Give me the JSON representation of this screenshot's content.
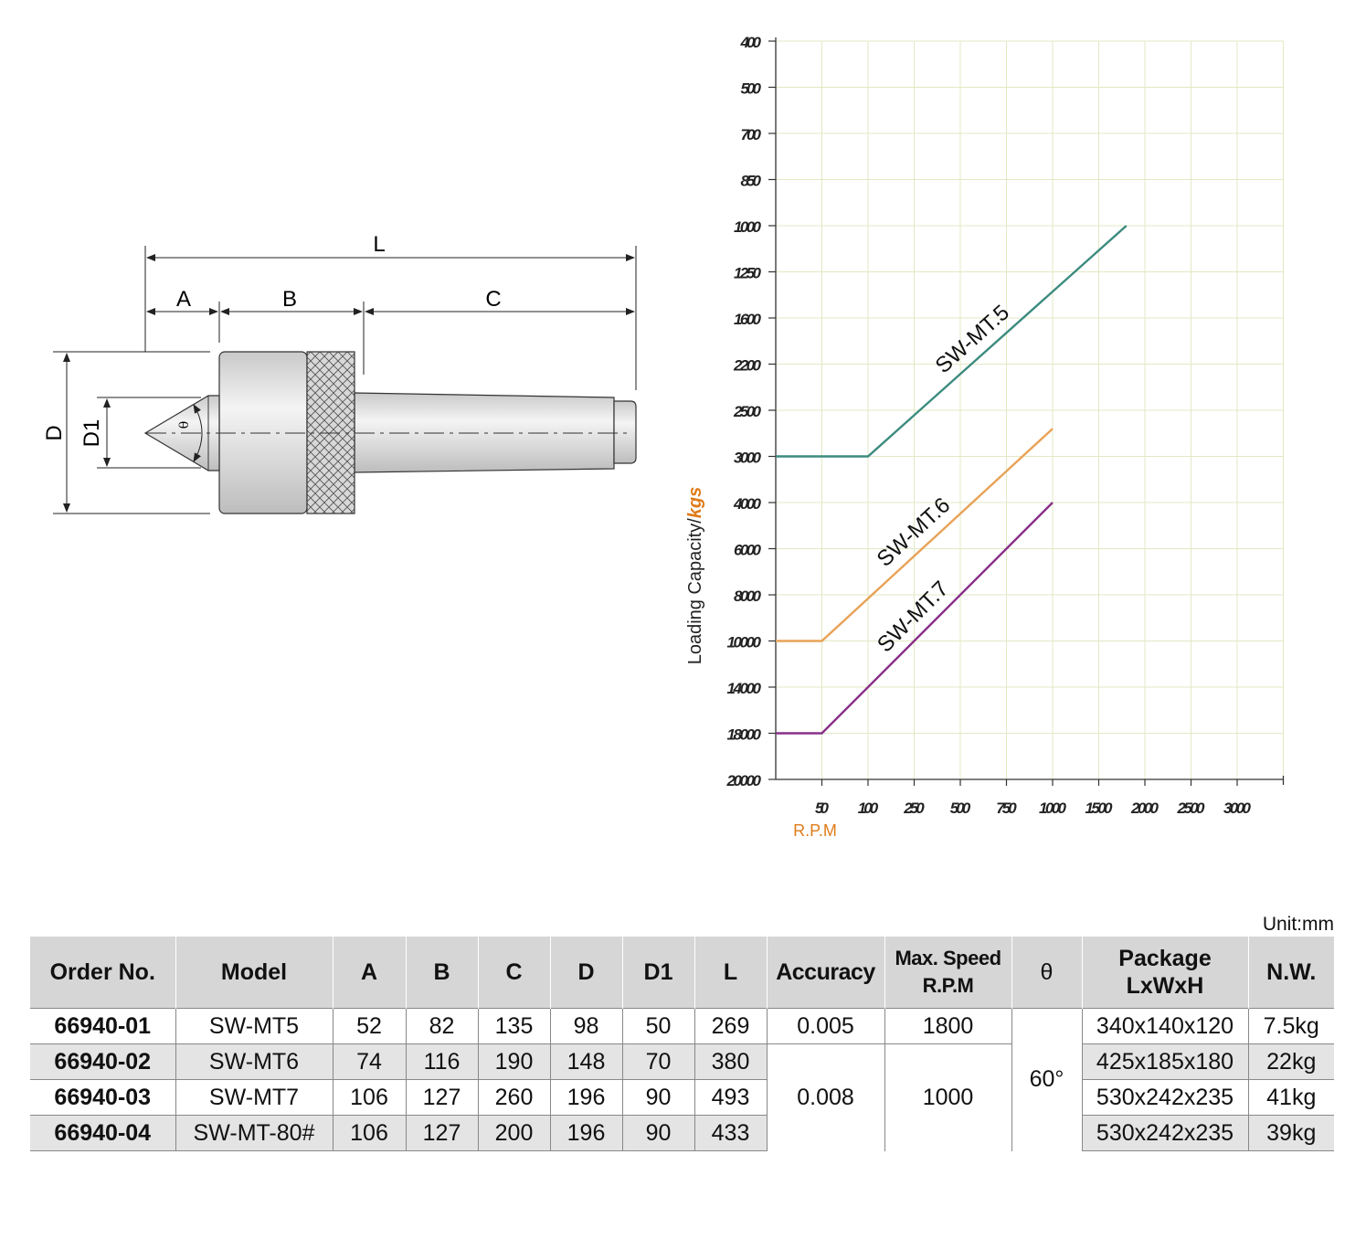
{
  "drawing": {
    "dimension_labels": {
      "L": "L",
      "A": "A",
      "B": "B",
      "C": "C",
      "D": "D",
      "D1": "D1",
      "theta": "θ"
    }
  },
  "chart_data": {
    "type": "line",
    "x_tick_labels": [
      "50",
      "100",
      "250",
      "500",
      "750",
      "1000",
      "1500",
      "2000",
      "2500",
      "3000"
    ],
    "y_tick_labels": [
      "400",
      "500",
      "700",
      "850",
      "1000",
      "1250",
      "1600",
      "2200",
      "2500",
      "3000",
      "4000",
      "6000",
      "8000",
      "10000",
      "14000",
      "18000",
      "20000"
    ],
    "xlabel": "R.P.M",
    "ylabel": "Loading Capacity/",
    "ylabel_unit": "kgs",
    "axis_color": "#333333",
    "grid_color": "#e3e8c4",
    "label_color": "#e07b1a",
    "series": [
      {
        "name": "SW-MT.5",
        "color": "#3b8b7e",
        "x": [
          "0",
          "100",
          "1800"
        ],
        "y": [
          "3000",
          "3000",
          "1000"
        ]
      },
      {
        "name": "SW-MT.6",
        "color": "#e8a257",
        "x": [
          "0",
          "50",
          "1000"
        ],
        "y": [
          "10000",
          "10000",
          "2700"
        ]
      },
      {
        "name": "SW-MT.7",
        "color": "#86308a",
        "x": [
          "0",
          "50",
          "1000"
        ],
        "y": [
          "18000",
          "18000",
          "4000"
        ]
      }
    ]
  },
  "table": {
    "unit": "Unit:mm",
    "headers": {
      "order_no": "Order No.",
      "model": "Model",
      "a": "A",
      "b": "B",
      "c": "C",
      "d": "D",
      "d1": "D1",
      "l": "L",
      "accuracy": "Accuracy",
      "max_speed_1": "Max. Speed",
      "max_speed_2": "R.P.M",
      "theta": "θ",
      "package_1": "Package",
      "package_2": "LxWxH",
      "nw": "N.W."
    },
    "rows": [
      {
        "order_no": "66940-01",
        "model": "SW-MT5",
        "a": "52",
        "b": "82",
        "c": "135",
        "d": "98",
        "d1": "50",
        "l": "269",
        "package": "340x140x120",
        "nw": "7.5kg"
      },
      {
        "order_no": "66940-02",
        "model": "SW-MT6",
        "a": "74",
        "b": "116",
        "c": "190",
        "d": "148",
        "d1": "70",
        "l": "380",
        "package": "425x185x180",
        "nw": "22kg"
      },
      {
        "order_no": "66940-03",
        "model": "SW-MT7",
        "a": "106",
        "b": "127",
        "c": "260",
        "d": "196",
        "d1": "90",
        "l": "493",
        "package": "530x242x235",
        "nw": "41kg"
      },
      {
        "order_no": "66940-04",
        "model": "SW-MT-80#",
        "a": "106",
        "b": "127",
        "c": "200",
        "d": "196",
        "d1": "90",
        "l": "433",
        "package": "530x242x235",
        "nw": "39kg"
      }
    ],
    "accuracy_values": [
      "0.005",
      "0.008"
    ],
    "speed_values": [
      "1800",
      "1000"
    ],
    "theta_value": "60°"
  }
}
